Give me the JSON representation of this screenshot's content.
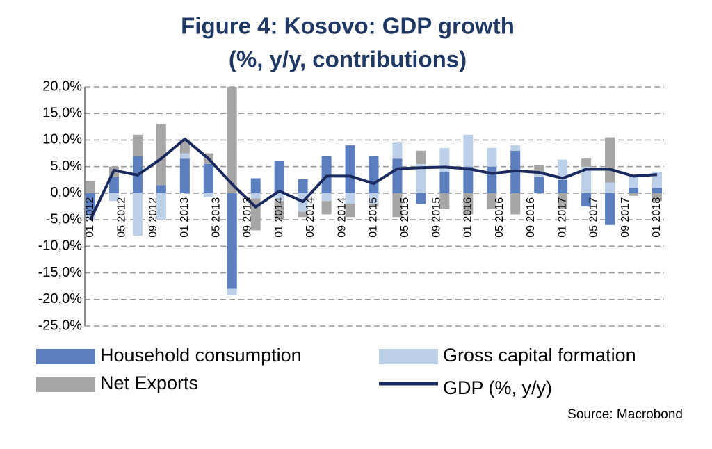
{
  "chart_data": {
    "type": "stacked_bar_line",
    "title_lines": [
      "Figure 4: Kosovo: GDP growth",
      "(%, y/y, contributions)"
    ],
    "source": "Source: Macrobond",
    "x": [
      "2012-01",
      "2012-04",
      "2012-07",
      "2012-10",
      "2013-01",
      "2013-04",
      "2013-07",
      "2013-10",
      "2014-01",
      "2014-04",
      "2014-07",
      "2014-10",
      "2015-01",
      "2015-04",
      "2015-07",
      "2015-10",
      "2016-01",
      "2016-04",
      "2016-07",
      "2016-10",
      "2017-01",
      "2017-04",
      "2017-07",
      "2017-10",
      "2018-01"
    ],
    "xticks": [
      {
        "value": "2012-01",
        "label": "01 2012"
      },
      {
        "value": "2012-05",
        "label": "05 2012"
      },
      {
        "value": "2012-09",
        "label": "09 2012"
      },
      {
        "value": "2013-01",
        "label": "01 2013"
      },
      {
        "value": "2013-05",
        "label": "05 2013"
      },
      {
        "value": "2013-09",
        "label": "09 2013"
      },
      {
        "value": "2014-01",
        "label": "01 2014"
      },
      {
        "value": "2014-05",
        "label": "05 2014"
      },
      {
        "value": "2014-09",
        "label": "09 2014"
      },
      {
        "value": "2015-01",
        "label": "01 2015"
      },
      {
        "value": "2015-05",
        "label": "05 2015"
      },
      {
        "value": "2015-09",
        "label": "09 2015"
      },
      {
        "value": "2016-01",
        "label": "01 2016"
      },
      {
        "value": "2016-05",
        "label": "05 2016"
      },
      {
        "value": "2016-09",
        "label": "09 2016"
      },
      {
        "value": "2017-01",
        "label": "01 2017"
      },
      {
        "value": "2017-05",
        "label": "05 2017"
      },
      {
        "value": "2017-09",
        "label": "09 2017"
      },
      {
        "value": "2018-01",
        "label": "01 2018"
      }
    ],
    "ylim": [
      -25,
      20
    ],
    "yticks": [
      {
        "value": -25,
        "label": "-25,0%"
      },
      {
        "value": -20,
        "label": "-20,0%"
      },
      {
        "value": -15,
        "label": "-15,0%"
      },
      {
        "value": -10,
        "label": "-10,0%"
      },
      {
        "value": -5,
        "label": "-5,0%"
      },
      {
        "value": 0,
        "label": "0,0%"
      },
      {
        "value": 5,
        "label": "5,0%"
      },
      {
        "value": 10,
        "label": "10,0%"
      },
      {
        "value": 15,
        "label": "15,0%"
      },
      {
        "value": 20,
        "label": "20,0%"
      }
    ],
    "grid": true,
    "series": [
      {
        "name": "Household consumption",
        "kind": "bar",
        "color": "#5b7fbf",
        "values": [
          -4,
          3,
          7,
          1.5,
          6.5,
          5.5,
          -18,
          2.8,
          6,
          2.6,
          7,
          9,
          7,
          6.5,
          -2,
          4,
          5,
          5,
          8,
          3,
          2.5,
          -2.5,
          -6,
          1,
          1
        ]
      },
      {
        "name": "Gross capital formation",
        "kind": "bar",
        "color": "#bcd0ea",
        "values": [
          -1,
          -1.5,
          -8,
          -5,
          1,
          -0.8,
          -1.2,
          -1,
          -1.5,
          -3.5,
          -1.5,
          -2,
          -2,
          3,
          5.5,
          4.5,
          6,
          3.5,
          1,
          1,
          3.8,
          5,
          2,
          2,
          3
        ]
      },
      {
        "name": "Net Exports",
        "kind": "bar",
        "color": "#a6a6a6",
        "values": [
          2.3,
          2,
          4,
          11.5,
          2.5,
          2,
          20,
          -6,
          -3.5,
          -1,
          -2.5,
          -2.5,
          -0.5,
          -4.5,
          2.5,
          -3,
          -4,
          -3,
          -4,
          1.3,
          -3,
          1.5,
          8.5,
          -0.5,
          -1.5
        ]
      },
      {
        "name": "GDP (%, y/y)",
        "kind": "line",
        "color": "#1b2a5e",
        "values": [
          -5,
          4.3,
          3.4,
          6.5,
          10.2,
          6.5,
          1.7,
          -2.6,
          0.4,
          -1.6,
          3.2,
          3.2,
          1.8,
          4.6,
          4.8,
          4.9,
          4.6,
          3.7,
          4.2,
          3.9,
          2.8,
          4.5,
          4.5,
          3.2,
          3.5
        ]
      }
    ]
  }
}
